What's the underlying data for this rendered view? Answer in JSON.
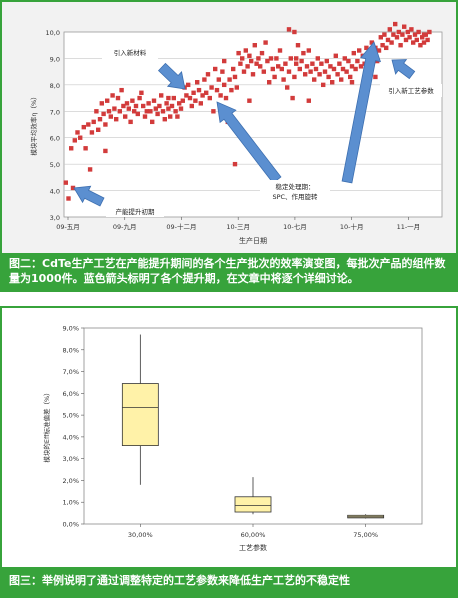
{
  "chart_data": [
    {
      "type": "scatter",
      "xlabel": "生产日期",
      "ylabel": "模块平均效率η（%）",
      "ylim": [
        3.0,
        10.0
      ],
      "yticks": [
        "3,0",
        "4,0",
        "5,0",
        "6,0",
        "7,0",
        "8,0",
        "9,0",
        "10,0"
      ],
      "xticks": [
        "09-五月",
        "09-九月",
        "09-十二月",
        "10-三月",
        "10-七月",
        "10-十月",
        "11-一月"
      ],
      "grid": "horizontal",
      "marker_color": "#d23b3b",
      "x_range_months": [
        0,
        21
      ],
      "points": [
        [
          0.1,
          4.3
        ],
        [
          0.25,
          3.7
        ],
        [
          0.4,
          5.6
        ],
        [
          0.5,
          4.1
        ],
        [
          0.6,
          5.9
        ],
        [
          0.75,
          6.2
        ],
        [
          0.9,
          6.0
        ],
        [
          1.0,
          4.0
        ],
        [
          1.1,
          6.4
        ],
        [
          1.2,
          5.6
        ],
        [
          1.35,
          6.5
        ],
        [
          1.45,
          4.8
        ],
        [
          1.55,
          6.2
        ],
        [
          1.65,
          6.6
        ],
        [
          1.8,
          7.0
        ],
        [
          1.9,
          6.3
        ],
        [
          2.0,
          6.7
        ],
        [
          2.1,
          7.3
        ],
        [
          2.2,
          6.9
        ],
        [
          2.3,
          6.5
        ],
        [
          2.4,
          7.4
        ],
        [
          2.5,
          7.0
        ],
        [
          2.6,
          6.8
        ],
        [
          2.7,
          7.6
        ],
        [
          2.8,
          7.1
        ],
        [
          2.9,
          6.7
        ],
        [
          3.0,
          7.5
        ],
        [
          3.1,
          7.0
        ],
        [
          3.2,
          7.8
        ],
        [
          3.3,
          7.2
        ],
        [
          3.4,
          6.8
        ],
        [
          3.5,
          7.3
        ],
        [
          3.6,
          7.1
        ],
        [
          3.7,
          6.6
        ],
        [
          3.8,
          7.4
        ],
        [
          3.9,
          7.0
        ],
        [
          4.0,
          7.2
        ],
        [
          4.1,
          6.9
        ],
        [
          4.2,
          7.5
        ],
        [
          4.3,
          7.7
        ],
        [
          4.4,
          7.2
        ],
        [
          4.5,
          6.8
        ],
        [
          4.6,
          7.0
        ],
        [
          4.7,
          7.3
        ],
        [
          4.8,
          7.0
        ],
        [
          4.9,
          6.6
        ],
        [
          5.0,
          7.4
        ],
        [
          5.1,
          7.1
        ],
        [
          5.2,
          6.9
        ],
        [
          5.3,
          7.2
        ],
        [
          5.4,
          7.6
        ],
        [
          5.5,
          7.0
        ],
        [
          5.6,
          6.7
        ],
        [
          5.7,
          7.3
        ],
        [
          5.8,
          7.1
        ],
        [
          5.9,
          6.8
        ],
        [
          6.0,
          7.2
        ],
        [
          6.1,
          7.5
        ],
        [
          6.2,
          7.0
        ],
        [
          6.3,
          6.8
        ],
        [
          6.4,
          7.3
        ],
        [
          6.5,
          7.1
        ],
        [
          6.6,
          7.4
        ],
        [
          6.7,
          7.9
        ],
        [
          6.8,
          7.6
        ],
        [
          6.9,
          8.0
        ],
        [
          7.0,
          7.5
        ],
        [
          7.1,
          7.2
        ],
        [
          7.2,
          7.7
        ],
        [
          7.3,
          7.4
        ],
        [
          7.4,
          8.1
        ],
        [
          7.5,
          7.8
        ],
        [
          7.6,
          7.3
        ],
        [
          7.7,
          7.6
        ],
        [
          7.8,
          8.2
        ],
        [
          7.9,
          7.7
        ],
        [
          8.0,
          8.4
        ],
        [
          8.1,
          7.5
        ],
        [
          8.2,
          7.9
        ],
        [
          8.3,
          7.0
        ],
        [
          8.4,
          8.6
        ],
        [
          8.5,
          7.8
        ],
        [
          8.6,
          8.2
        ],
        [
          8.7,
          7.6
        ],
        [
          8.8,
          8.5
        ],
        [
          8.9,
          8.0
        ],
        [
          9.0,
          7.5
        ],
        [
          9.1,
          6.6
        ],
        [
          9.2,
          8.2
        ],
        [
          9.3,
          7.8
        ],
        [
          9.4,
          8.6
        ],
        [
          9.5,
          8.3
        ],
        [
          9.6,
          7.9
        ],
        [
          9.7,
          9.2
        ],
        [
          9.8,
          8.8
        ],
        [
          9.9,
          9.0
        ],
        [
          10.0,
          8.5
        ],
        [
          10.1,
          9.3
        ],
        [
          10.2,
          8.7
        ],
        [
          10.3,
          9.1
        ],
        [
          10.4,
          8.9
        ],
        [
          10.5,
          8.4
        ],
        [
          10.6,
          9.5
        ],
        [
          10.7,
          8.8
        ],
        [
          10.8,
          9.0
        ],
        [
          10.9,
          8.7
        ],
        [
          11.0,
          9.2
        ],
        [
          11.1,
          8.5
        ],
        [
          11.2,
          9.6
        ],
        [
          11.3,
          8.9
        ],
        [
          11.4,
          8.1
        ],
        [
          11.5,
          9.0
        ],
        [
          11.6,
          8.6
        ],
        [
          11.7,
          8.3
        ],
        [
          11.8,
          9.0
        ],
        [
          11.9,
          8.7
        ],
        [
          12.0,
          9.3
        ],
        [
          12.1,
          8.6
        ],
        [
          12.2,
          8.2
        ],
        [
          12.3,
          8.8
        ],
        [
          12.4,
          7.9
        ],
        [
          12.5,
          8.5
        ],
        [
          12.6,
          9.0
        ],
        [
          12.7,
          7.5
        ],
        [
          12.8,
          8.3
        ],
        [
          12.9,
          8.8
        ],
        [
          13.0,
          9.5
        ],
        [
          13.1,
          8.6
        ],
        [
          13.2,
          8.9
        ],
        [
          13.3,
          9.2
        ],
        [
          13.4,
          8.4
        ],
        [
          13.5,
          8.7
        ],
        [
          13.6,
          9.3
        ],
        [
          13.7,
          8.5
        ],
        [
          13.8,
          8.8
        ],
        [
          13.9,
          8.2
        ],
        [
          14.0,
          8.6
        ],
        [
          14.1,
          9.0
        ],
        [
          14.2,
          8.4
        ],
        [
          14.3,
          8.8
        ],
        [
          14.4,
          8.0
        ],
        [
          14.5,
          8.5
        ],
        [
          14.6,
          8.9
        ],
        [
          14.7,
          8.3
        ],
        [
          14.8,
          8.7
        ],
        [
          14.9,
          8.1
        ],
        [
          15.0,
          8.6
        ],
        [
          15.1,
          9.1
        ],
        [
          15.2,
          8.4
        ],
        [
          15.3,
          8.8
        ],
        [
          15.4,
          8.2
        ],
        [
          15.5,
          8.6
        ],
        [
          15.6,
          9.0
        ],
        [
          15.7,
          8.5
        ],
        [
          15.8,
          8.9
        ],
        [
          15.9,
          8.3
        ],
        [
          16.0,
          8.7
        ],
        [
          16.1,
          9.2
        ],
        [
          16.2,
          8.6
        ],
        [
          16.3,
          8.9
        ],
        [
          16.4,
          9.3
        ],
        [
          16.5,
          8.7
        ],
        [
          16.6,
          9.1
        ],
        [
          16.7,
          8.8
        ],
        [
          16.8,
          9.4
        ],
        [
          16.9,
          8.9
        ],
        [
          17.0,
          9.2
        ],
        [
          17.1,
          9.6
        ],
        [
          17.2,
          9.0
        ],
        [
          17.3,
          9.4
        ],
        [
          17.4,
          8.9
        ],
        [
          17.5,
          9.3
        ],
        [
          17.6,
          9.8
        ],
        [
          17.7,
          9.5
        ],
        [
          17.8,
          9.9
        ],
        [
          17.9,
          9.4
        ],
        [
          18.0,
          9.7
        ],
        [
          18.1,
          10.1
        ],
        [
          18.2,
          9.6
        ],
        [
          18.3,
          9.9
        ],
        [
          18.4,
          10.3
        ],
        [
          18.5,
          9.8
        ],
        [
          18.6,
          10.0
        ],
        [
          18.7,
          9.5
        ],
        [
          18.8,
          9.9
        ],
        [
          18.9,
          10.2
        ],
        [
          19.0,
          9.7
        ],
        [
          19.1,
          10.0
        ],
        [
          19.2,
          9.8
        ],
        [
          19.3,
          10.1
        ],
        [
          19.4,
          9.6
        ],
        [
          19.5,
          9.9
        ],
        [
          19.6,
          9.7
        ],
        [
          19.7,
          10.0
        ],
        [
          19.8,
          9.5
        ],
        [
          19.9,
          9.8
        ],
        [
          20.0,
          9.6
        ],
        [
          20.1,
          9.9
        ],
        [
          20.2,
          9.7
        ],
        [
          20.3,
          10.0
        ],
        [
          2.3,
          5.5
        ],
        [
          5.8,
          7.5
        ],
        [
          9.5,
          5.0
        ],
        [
          12.5,
          10.1
        ],
        [
          12.8,
          10.0
        ],
        [
          8.9,
          8.9
        ],
        [
          10.3,
          7.4
        ],
        [
          12.9,
          9.0
        ],
        [
          13.6,
          7.4
        ],
        [
          16.0,
          8.1
        ],
        [
          17.3,
          8.3
        ],
        [
          20.0,
          9.9
        ]
      ],
      "annotations": [
        {
          "label": "产能提升初期"
        },
        {
          "label": "引入新材料"
        },
        {
          "label": "稳定处理期：\nSPC、作用旋转"
        },
        {
          "label": "引入新工艺参数"
        }
      ],
      "caption": "图二：CdTe生产工艺在产能提升期间的各个生产批次的效率演变图，每批次产品的组件数量为1000件。蓝色箭头标明了各个提升期，在文章中将逐个详细讨论。"
    },
    {
      "type": "boxplot",
      "xlabel": "工艺参数",
      "ylabel": "模块的Eff标准偏差（%）",
      "ylim": [
        0.0,
        9.0
      ],
      "yticks": [
        "0,0%",
        "1,0%",
        "2,0%",
        "3,0%",
        "4,0%",
        "5,0%",
        "6,0%",
        "7,0%",
        "8,0%",
        "9,0%"
      ],
      "categories": [
        "30,00%",
        "60,00%",
        "75,00%"
      ],
      "boxes": [
        {
          "min": 1.8,
          "q1": 3.6,
          "median": 5.35,
          "q3": 6.45,
          "max": 8.7
        },
        {
          "min": 0.45,
          "q1": 0.55,
          "median": 0.85,
          "q3": 1.25,
          "max": 2.15
        },
        {
          "min": 0.25,
          "q1": 0.28,
          "median": 0.33,
          "q3": 0.4,
          "max": 0.45
        }
      ],
      "box_fill": "#fff2a8",
      "caption": "图三：举例说明了通过调整特定的工艺参数来降低生产工艺的不稳定性"
    }
  ]
}
